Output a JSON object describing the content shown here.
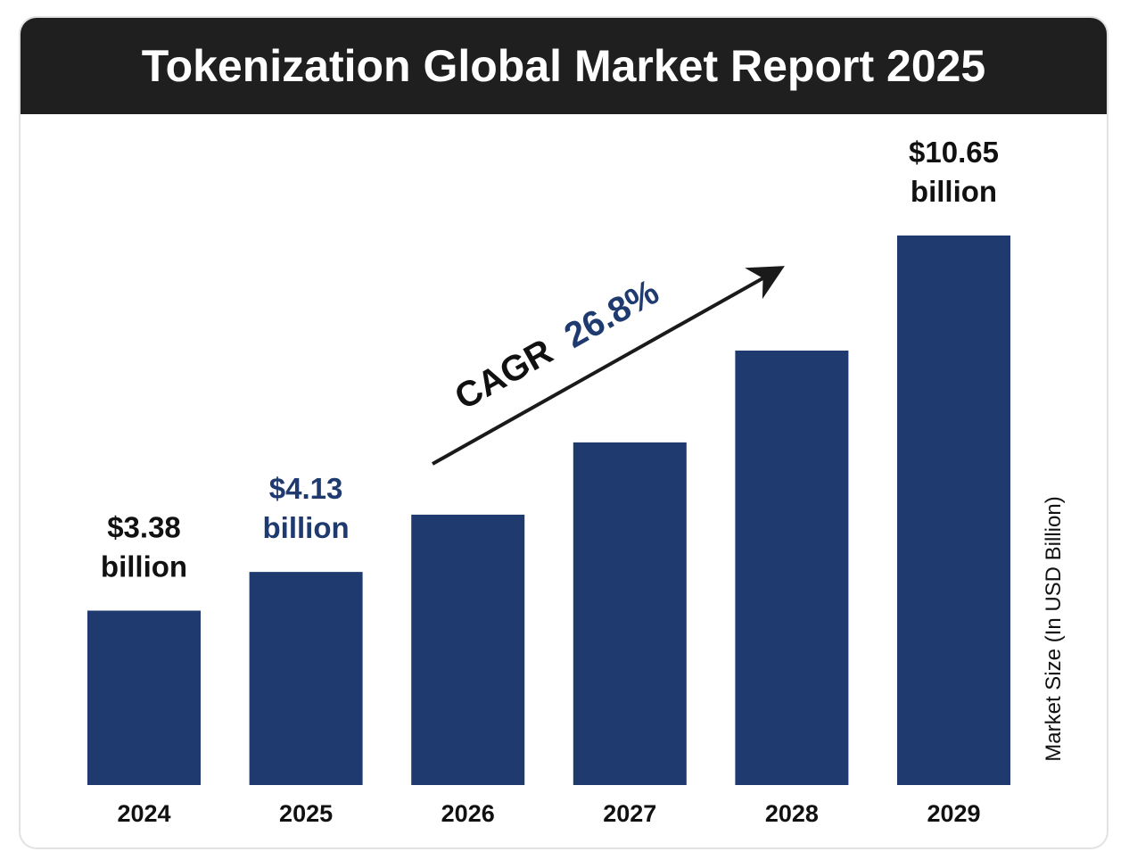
{
  "title": "Tokenization Global Market Report 2025",
  "colors": {
    "bar": "#1e3a6e",
    "accent": "#1e3a6e",
    "text": "#111111",
    "header_bg": "#1f1f1f"
  },
  "cagr": {
    "prefix": "CAGR",
    "value": "26.8%"
  },
  "chart_data": {
    "type": "bar",
    "title": "Tokenization Global Market Report 2025",
    "categories": [
      "2024",
      "2025",
      "2026",
      "2027",
      "2028",
      "2029"
    ],
    "values": [
      3.38,
      4.13,
      5.24,
      6.64,
      8.42,
      10.65
    ],
    "ylabel": "Market Size (In USD Billion)",
    "xlabel": "",
    "ylim": [
      0,
      10.65
    ],
    "grid": false,
    "data_labels": [
      {
        "index": 0,
        "line1": "$3.38",
        "line2": "billion",
        "color": "#111111"
      },
      {
        "index": 1,
        "line1": "$4.13",
        "line2": "billion",
        "color": "#1e3a6e"
      },
      {
        "index": 5,
        "line1": "$10.65",
        "line2": "billion",
        "color": "#111111"
      }
    ]
  }
}
